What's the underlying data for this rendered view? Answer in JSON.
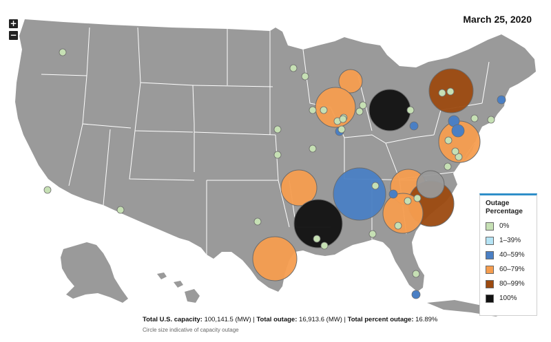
{
  "date": "March 25, 2020",
  "zoom": {
    "in_label": "+",
    "out_label": "−"
  },
  "legend": {
    "title": "Outage Percentage",
    "items": [
      {
        "label": "0%",
        "color": "#c6e0b4"
      },
      {
        "label": "1–39%",
        "color": "#b6e4f5"
      },
      {
        "label": "40–59%",
        "color": "#4a7fc4"
      },
      {
        "label": "60–79%",
        "color": "#f59d4f"
      },
      {
        "label": "80–99%",
        "color": "#9c4a10"
      },
      {
        "label": "100%",
        "color": "#111111"
      }
    ]
  },
  "footer": {
    "capacity_label": "Total U.S. capacity:",
    "capacity_value": "100,141.5 (MW)",
    "sep1": "|",
    "outage_label": "Total outage:",
    "outage_value": "16,913.6 (MW)",
    "sep2": "|",
    "percent_label": "Total percent outage:",
    "percent_value": "16.89%",
    "note": "Circle size indicative of capacity outage"
  },
  "colors": {
    "land": "#9a9a9a",
    "border": "#ffffff",
    "circle_stroke": "#6b6b6b"
  },
  "markers": [
    {
      "level": 4,
      "cat": "large",
      "place": "Northern Minnesota/Wisconsin"
    },
    {
      "level": 4,
      "cat": "large",
      "place": "Wisconsin/Illinois"
    },
    {
      "level": 6,
      "cat": "large",
      "place": "Ohio"
    },
    {
      "level": 5,
      "cat": "large",
      "place": "New York"
    },
    {
      "level": 4,
      "cat": "large",
      "place": "Pennsylvania/New Jersey"
    },
    {
      "level": 4,
      "cat": "large",
      "place": "Arkansas"
    },
    {
      "level": 3,
      "cat": "large",
      "place": "Tennessee"
    },
    {
      "level": 4,
      "cat": "large",
      "place": "Kentucky/Tennessee"
    },
    {
      "level": 5,
      "cat": "large",
      "place": "North Carolina"
    },
    {
      "level": 6,
      "cat": "large",
      "place": "Louisiana"
    },
    {
      "level": 4,
      "cat": "large",
      "place": "Georgia/South Carolina"
    },
    {
      "level": 4,
      "cat": "large",
      "place": "Texas"
    },
    {
      "level": 7,
      "cat": "large",
      "place": "Virginia"
    },
    {
      "level": 3,
      "cat": "small",
      "place": "New Jersey"
    },
    {
      "level": 3,
      "cat": "small",
      "place": "Maryland"
    },
    {
      "level": 3,
      "cat": "small",
      "place": "Massachusetts"
    },
    {
      "level": 3,
      "cat": "small",
      "place": "Ohio"
    },
    {
      "level": 3,
      "cat": "small",
      "place": "Iowa"
    },
    {
      "level": 3,
      "cat": "small",
      "place": "Kentucky"
    },
    {
      "level": 3,
      "cat": "small",
      "place": "Florida"
    },
    {
      "level": 1,
      "cat": "small",
      "place": "Washington"
    },
    {
      "level": 1,
      "cat": "small",
      "place": "Minnesota"
    },
    {
      "level": 1,
      "cat": "small",
      "place": "Minnesota"
    },
    {
      "level": 1,
      "cat": "small",
      "place": "Wisconsin"
    },
    {
      "level": 1,
      "cat": "small",
      "place": "Wisconsin"
    },
    {
      "level": 1,
      "cat": "small",
      "place": "Michigan"
    },
    {
      "level": 1,
      "cat": "small",
      "place": "Michigan"
    },
    {
      "level": 1,
      "cat": "small",
      "place": "Michigan"
    },
    {
      "level": 1,
      "cat": "small",
      "place": "Ohio"
    },
    {
      "level": 1,
      "cat": "small",
      "place": "Nebraska"
    },
    {
      "level": 1,
      "cat": "small",
      "place": "Kansas"
    },
    {
      "level": 1,
      "cat": "small",
      "place": "Missouri"
    },
    {
      "level": 1,
      "cat": "small",
      "place": "Missouri"
    },
    {
      "level": 1,
      "cat": "small",
      "place": "California"
    },
    {
      "level": 1,
      "cat": "small",
      "place": "Arizona"
    },
    {
      "level": 1,
      "cat": "small",
      "place": "Texas"
    },
    {
      "level": 1,
      "cat": "small",
      "place": "Louisiana"
    },
    {
      "level": 1,
      "cat": "small",
      "place": "Louisiana"
    },
    {
      "level": 1,
      "cat": "small",
      "place": "Mississippi/Alabama"
    },
    {
      "level": 1,
      "cat": "small",
      "place": "Alabama"
    },
    {
      "level": 1,
      "cat": "small",
      "place": "Georgia"
    },
    {
      "level": 1,
      "cat": "small",
      "place": "Florida"
    },
    {
      "level": 1,
      "cat": "small",
      "place": "Tennessee"
    },
    {
      "level": 1,
      "cat": "small",
      "place": "Tennessee"
    },
    {
      "level": 1,
      "cat": "small",
      "place": "Virginia"
    },
    {
      "level": 1,
      "cat": "small",
      "place": "Virginia"
    },
    {
      "level": 1,
      "cat": "small",
      "place": "Pennsylvania"
    },
    {
      "level": 1,
      "cat": "small",
      "place": "Pennsylvania"
    },
    {
      "level": 1,
      "cat": "small",
      "place": "Connecticut"
    },
    {
      "level": 1,
      "cat": "small",
      "place": "New York"
    },
    {
      "level": 1,
      "cat": "small",
      "place": "New York"
    },
    {
      "level": 1,
      "cat": "small",
      "place": "North Carolina"
    },
    {
      "level": 1,
      "cat": "small",
      "place": "Wisconsin"
    },
    {
      "level": 1,
      "cat": "small",
      "place": "Illinois"
    }
  ]
}
